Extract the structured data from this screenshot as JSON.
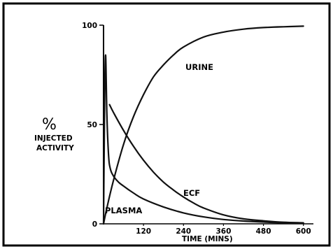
{
  "chart_data": {
    "type": "line",
    "xlabel": "TIME (MINS)",
    "ylabel_symbol": "%",
    "ylabel_lines": [
      "INJECTED",
      "ACTIVITY"
    ],
    "x_ticks": [
      "120",
      "240",
      "360",
      "480",
      "600"
    ],
    "y_ticks": [
      "100",
      "50",
      "0"
    ],
    "xlim": [
      0,
      630
    ],
    "ylim": [
      0,
      100
    ],
    "grid": false,
    "legend": "none",
    "series": [
      {
        "name": "URINE",
        "x": [
          0,
          10,
          30,
          60,
          90,
          120,
          150,
          180,
          210,
          240,
          300,
          360,
          420,
          480,
          540,
          600
        ],
        "y": [
          0,
          8,
          22,
          40,
          54,
          65,
          74,
          80,
          85,
          89,
          94,
          96.5,
          98,
          98.8,
          99.2,
          99.5
        ]
      },
      {
        "name": "ECF",
        "x": [
          18,
          30,
          60,
          90,
          120,
          150,
          180,
          210,
          240,
          270,
          300,
          360,
          420,
          480,
          540,
          600
        ],
        "y": [
          60,
          56,
          47,
          39,
          32,
          26,
          21,
          17,
          13.5,
          10.5,
          8,
          4.5,
          2.5,
          1.5,
          0.8,
          0.5
        ]
      },
      {
        "name": "PLASMA",
        "x": [
          0,
          3,
          6,
          10,
          15,
          20,
          30,
          45,
          60,
          90,
          120,
          180,
          240,
          300,
          360,
          420,
          480,
          540,
          600
        ],
        "y": [
          0,
          55,
          85,
          55,
          35,
          28,
          24,
          21,
          19,
          15.5,
          12.5,
          8.5,
          5.5,
          3.5,
          2.2,
          1.4,
          0.9,
          0.5,
          0.3
        ]
      }
    ]
  }
}
